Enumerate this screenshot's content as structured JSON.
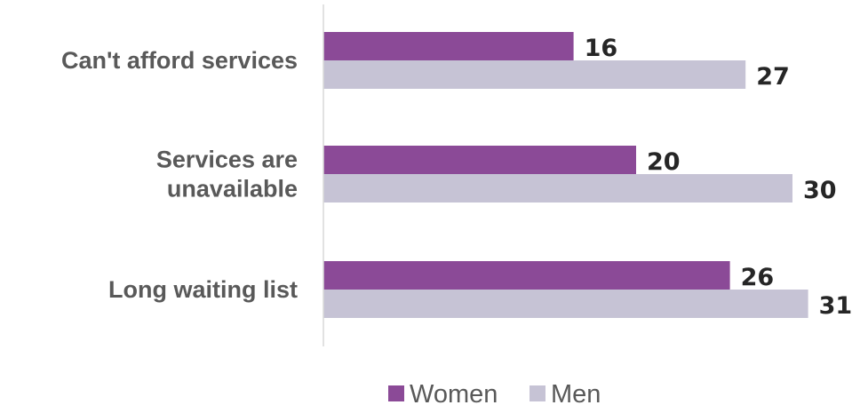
{
  "chart_data": {
    "type": "bar",
    "orientation": "horizontal",
    "categories": [
      [
        "Can't afford services"
      ],
      [
        "Services are",
        "unavailable"
      ],
      [
        "Long waiting list"
      ]
    ],
    "series": [
      {
        "name": "Women",
        "values": [
          16,
          20,
          26
        ],
        "color": "#8B4A97"
      },
      {
        "name": "Men",
        "values": [
          27,
          30,
          31
        ],
        "color": "#C6C3D5"
      }
    ],
    "xlim": [
      0,
      31
    ],
    "grid": false,
    "legend_position": "bottom",
    "data_labels": true
  }
}
